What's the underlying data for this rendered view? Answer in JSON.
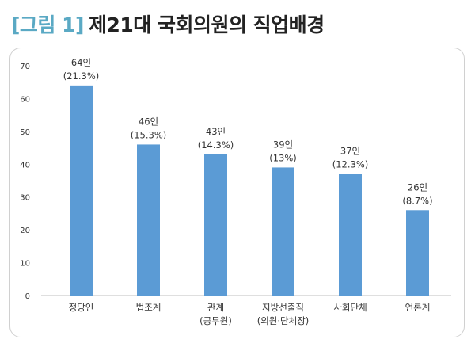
{
  "figure": {
    "tag": "[그림 1]",
    "title": "제21대 국회의원의 직업배경"
  },
  "colors": {
    "bar": "#5b9bd5",
    "tag": "#5aa9c4",
    "title": "#222222",
    "axis": "#bfbfbf"
  },
  "chart_data": {
    "type": "bar",
    "categories": [
      [
        "정당인"
      ],
      [
        "법조계"
      ],
      [
        "관계",
        "(공무원)"
      ],
      [
        "지방선출직",
        "(의원·단체장)"
      ],
      [
        "사회단체"
      ],
      [
        "언론계"
      ]
    ],
    "values": [
      64,
      46,
      43,
      39,
      37,
      26
    ],
    "data_labels": [
      [
        "64인",
        "(21.3%)"
      ],
      [
        "46인",
        "(15.3%)"
      ],
      [
        "43인",
        "(14.3%)"
      ],
      [
        "39인",
        "(13%)"
      ],
      [
        "37인",
        "(12.3%)"
      ],
      [
        "26인",
        "(8.7%)"
      ]
    ],
    "ylim": [
      0,
      70
    ],
    "yticks": [
      0,
      10,
      20,
      30,
      40,
      50,
      60,
      70
    ],
    "grid": false,
    "legend": "none"
  }
}
